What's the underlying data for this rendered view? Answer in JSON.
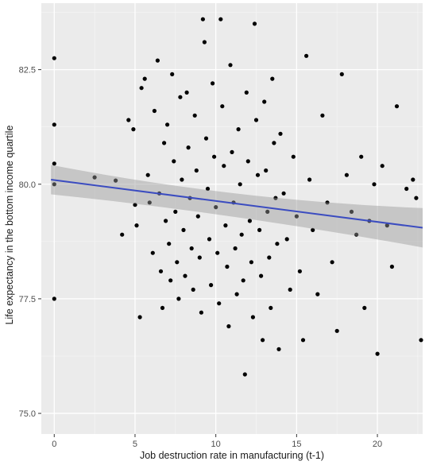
{
  "chart_data": {
    "type": "scatter",
    "title": "",
    "xlabel": "Job destruction rate in manufacturing (t-1)",
    "ylabel": "Life expectancy in the bottom income quartile",
    "xlim": [
      -0.8,
      22.8
    ],
    "ylim": [
      74.55,
      83.95
    ],
    "x_ticks": [
      0,
      5,
      10,
      15,
      20
    ],
    "x_tick_labels": [
      "0",
      "5",
      "10",
      "15",
      "20"
    ],
    "y_ticks": [
      75.0,
      77.5,
      80.0,
      82.5
    ],
    "y_tick_labels": [
      "75.0",
      "77.5",
      "80.0",
      "82.5"
    ],
    "grid": true,
    "legend": "none",
    "colors": {
      "panel": "#ebebeb",
      "grid_major": "#ffffff",
      "grid_minor": "#f5f5f5",
      "points": "#000000",
      "fit_line": "#3b4cc0",
      "confidence_band": "#999999"
    },
    "fit": {
      "method": "linear",
      "x_start": -0.2,
      "y_start": 80.1,
      "x_end": 22.8,
      "y_end": 79.05,
      "band_start": [
        79.78,
        80.42
      ],
      "band_mid": [
        79.38,
        79.62
      ],
      "band_end": [
        78.62,
        79.48
      ]
    },
    "points": [
      [
        0.0,
        82.75
      ],
      [
        0.0,
        81.3
      ],
      [
        0.0,
        80.45
      ],
      [
        0.0,
        80.0
      ],
      [
        0.0,
        77.5
      ],
      [
        2.5,
        80.15
      ],
      [
        3.8,
        80.08
      ],
      [
        4.2,
        78.9
      ],
      [
        4.6,
        81.4
      ],
      [
        4.9,
        81.2
      ],
      [
        5.0,
        79.55
      ],
      [
        5.1,
        79.1
      ],
      [
        5.3,
        77.1
      ],
      [
        5.4,
        82.1
      ],
      [
        5.6,
        82.3
      ],
      [
        5.8,
        80.2
      ],
      [
        5.9,
        79.6
      ],
      [
        6.1,
        78.5
      ],
      [
        6.2,
        81.6
      ],
      [
        6.4,
        82.7
      ],
      [
        6.5,
        79.8
      ],
      [
        6.6,
        78.1
      ],
      [
        6.7,
        77.3
      ],
      [
        6.8,
        80.9
      ],
      [
        6.9,
        79.2
      ],
      [
        7.0,
        81.3
      ],
      [
        7.1,
        78.7
      ],
      [
        7.2,
        77.9
      ],
      [
        7.3,
        82.4
      ],
      [
        7.4,
        80.5
      ],
      [
        7.5,
        79.4
      ],
      [
        7.6,
        78.3
      ],
      [
        7.7,
        77.5
      ],
      [
        7.8,
        81.9
      ],
      [
        7.9,
        80.1
      ],
      [
        8.0,
        79.0
      ],
      [
        8.1,
        78.0
      ],
      [
        8.2,
        82.0
      ],
      [
        8.3,
        80.8
      ],
      [
        8.4,
        79.7
      ],
      [
        8.5,
        78.6
      ],
      [
        8.6,
        77.7
      ],
      [
        8.7,
        81.5
      ],
      [
        8.8,
        80.3
      ],
      [
        8.9,
        79.3
      ],
      [
        9.0,
        78.4
      ],
      [
        9.1,
        77.2
      ],
      [
        9.2,
        83.6
      ],
      [
        9.3,
        83.1
      ],
      [
        9.4,
        81.0
      ],
      [
        9.5,
        79.9
      ],
      [
        9.6,
        78.8
      ],
      [
        9.7,
        77.8
      ],
      [
        9.8,
        82.2
      ],
      [
        9.9,
        80.6
      ],
      [
        10.0,
        79.5
      ],
      [
        10.1,
        78.5
      ],
      [
        10.2,
        77.4
      ],
      [
        10.3,
        83.6
      ],
      [
        10.4,
        81.7
      ],
      [
        10.5,
        80.4
      ],
      [
        10.6,
        79.1
      ],
      [
        10.7,
        78.2
      ],
      [
        10.8,
        76.9
      ],
      [
        10.9,
        82.6
      ],
      [
        11.0,
        80.7
      ],
      [
        11.1,
        79.6
      ],
      [
        11.2,
        78.6
      ],
      [
        11.3,
        77.6
      ],
      [
        11.4,
        81.2
      ],
      [
        11.5,
        80.0
      ],
      [
        11.6,
        78.9
      ],
      [
        11.7,
        77.9
      ],
      [
        11.8,
        75.85
      ],
      [
        11.9,
        82.0
      ],
      [
        12.0,
        80.5
      ],
      [
        12.1,
        79.2
      ],
      [
        12.2,
        78.3
      ],
      [
        12.3,
        77.1
      ],
      [
        12.4,
        83.5
      ],
      [
        12.5,
        81.4
      ],
      [
        12.6,
        80.2
      ],
      [
        12.7,
        79.0
      ],
      [
        12.8,
        78.0
      ],
      [
        12.9,
        76.6
      ],
      [
        13.0,
        81.8
      ],
      [
        13.1,
        80.3
      ],
      [
        13.2,
        79.4
      ],
      [
        13.3,
        78.4
      ],
      [
        13.4,
        77.3
      ],
      [
        13.5,
        82.3
      ],
      [
        13.6,
        80.9
      ],
      [
        13.7,
        79.7
      ],
      [
        13.8,
        78.7
      ],
      [
        13.9,
        76.4
      ],
      [
        14.0,
        81.1
      ],
      [
        14.2,
        79.8
      ],
      [
        14.4,
        78.8
      ],
      [
        14.6,
        77.7
      ],
      [
        14.8,
        80.6
      ],
      [
        15.0,
        79.3
      ],
      [
        15.2,
        78.1
      ],
      [
        15.4,
        76.6
      ],
      [
        15.6,
        82.8
      ],
      [
        15.8,
        80.1
      ],
      [
        16.0,
        79.0
      ],
      [
        16.3,
        77.6
      ],
      [
        16.6,
        81.5
      ],
      [
        16.9,
        79.6
      ],
      [
        17.2,
        78.3
      ],
      [
        17.5,
        76.8
      ],
      [
        17.8,
        82.4
      ],
      [
        18.1,
        80.2
      ],
      [
        18.4,
        79.4
      ],
      [
        18.7,
        78.9
      ],
      [
        19.0,
        80.6
      ],
      [
        19.2,
        77.3
      ],
      [
        19.5,
        79.2
      ],
      [
        19.8,
        80.0
      ],
      [
        20.0,
        76.3
      ],
      [
        20.3,
        80.4
      ],
      [
        20.6,
        79.1
      ],
      [
        20.9,
        78.2
      ],
      [
        21.2,
        81.7
      ],
      [
        21.8,
        79.9
      ],
      [
        22.2,
        80.1
      ],
      [
        22.4,
        79.7
      ],
      [
        22.7,
        76.6
      ]
    ]
  }
}
